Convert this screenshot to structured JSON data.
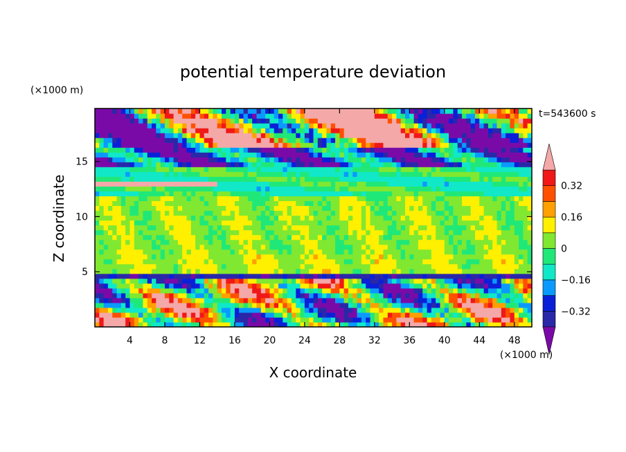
{
  "chart_data": {
    "type": "heatmap",
    "title": "potential temperature deviation",
    "xlabel": "X coordinate",
    "ylabel": "Z coordinate",
    "x_unit": "(×1000 m)",
    "y_unit": "(×1000 m)",
    "time_label": "t=543600 s",
    "xlim": [
      0,
      50
    ],
    "ylim": [
      0,
      19.8
    ],
    "x_ticks": [
      4,
      8,
      12,
      16,
      20,
      24,
      28,
      32,
      36,
      40,
      44,
      48
    ],
    "y_ticks": [
      5,
      10,
      15
    ],
    "colorbar": {
      "levels": [
        -0.4,
        -0.32,
        -0.24,
        -0.16,
        -0.08,
        0,
        0.08,
        0.16,
        0.24,
        0.32,
        0.4
      ],
      "labels": [
        -0.32,
        -0.16,
        0,
        0.16,
        0.32
      ],
      "label_text": [
        "−0.32",
        "−0.16",
        "0",
        "0.16",
        "0.32"
      ],
      "colors": [
        "#7a0aa8",
        "#2a28a8",
        "#0a20d8",
        "#0a9aff",
        "#10e8c8",
        "#20e878",
        "#80e830",
        "#fff000",
        "#ffa000",
        "#ff5000",
        "#f01818",
        "#f4a8a8"
      ],
      "extend": "both"
    }
  }
}
